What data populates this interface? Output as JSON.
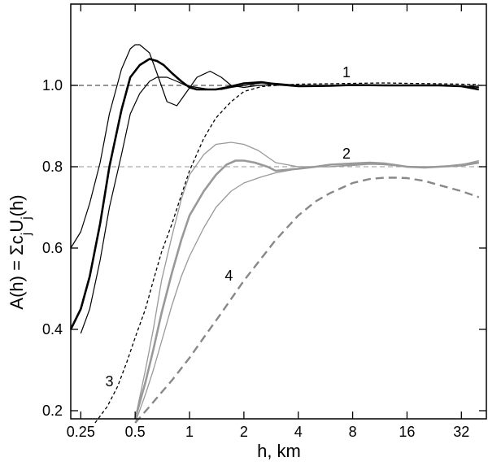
{
  "chart_data": {
    "type": "line",
    "xlabel": "h, km",
    "ylabel_parts": {
      "a": "A(h) = ",
      "sigma": "Σ",
      "c": "c",
      "j1": "j",
      "u": "U",
      "j2": "j",
      "tail": "(h)"
    },
    "x_scale": "log2",
    "xlim": [
      0.22,
      44
    ],
    "ylim": [
      0.18,
      1.2
    ],
    "x_ticks": [
      {
        "value": 0.25,
        "label": "0.25"
      },
      {
        "value": 0.5,
        "label": "0.5"
      },
      {
        "value": 1,
        "label": "1"
      },
      {
        "value": 2,
        "label": "2"
      },
      {
        "value": 4,
        "label": "4"
      },
      {
        "value": 8,
        "label": "8"
      },
      {
        "value": 16,
        "label": "16"
      },
      {
        "value": 32,
        "label": "32"
      }
    ],
    "y_ticks": [
      {
        "value": 0.2,
        "label": "0.2"
      },
      {
        "value": 0.4,
        "label": "0.4"
      },
      {
        "value": 0.6,
        "label": "0.6"
      },
      {
        "value": 0.8,
        "label": "0.8"
      },
      {
        "value": 1.0,
        "label": "1.0"
      }
    ],
    "reference_lines": [
      {
        "y": 1.0,
        "color": "#555555"
      },
      {
        "y": 0.8,
        "color": "#aaaaaa"
      }
    ],
    "annotations": [
      {
        "text": "1",
        "x": 7.4,
        "y": 1.02
      },
      {
        "text": "2",
        "x": 7.4,
        "y": 0.82
      },
      {
        "text": "3",
        "x": 0.36,
        "y": 0.26
      },
      {
        "text": "4",
        "x": 1.65,
        "y": 0.52
      }
    ],
    "series": [
      {
        "id": "s1a",
        "group": "1",
        "color": "#000000",
        "width": 1.2,
        "dash": "",
        "x": [
          0.22,
          0.25,
          0.28,
          0.32,
          0.36,
          0.42,
          0.47,
          0.5,
          0.53,
          0.6,
          0.66,
          0.75,
          0.85,
          0.95,
          1.1,
          1.3,
          1.5,
          1.7,
          2.0,
          2.4,
          3.0,
          4.0,
          6.0,
          8.0,
          12,
          16,
          24,
          32,
          40
        ],
        "y": [
          0.6,
          0.64,
          0.71,
          0.81,
          0.93,
          1.04,
          1.09,
          1.1,
          1.1,
          1.08,
          1.03,
          0.96,
          0.95,
          0.98,
          1.02,
          1.035,
          1.02,
          1.0,
          0.995,
          1.0,
          1.003,
          1.0,
          0.999,
          1.0,
          1.0,
          1.0,
          1.0,
          0.998,
          0.995
        ]
      },
      {
        "id": "s1b",
        "group": "1",
        "color": "#000000",
        "width": 2.6,
        "dash": "",
        "x": [
          0.22,
          0.25,
          0.28,
          0.32,
          0.36,
          0.42,
          0.47,
          0.53,
          0.6,
          0.66,
          0.72,
          0.8,
          0.9,
          1.0,
          1.1,
          1.25,
          1.4,
          1.6,
          2.0,
          2.5,
          3.0,
          4.0,
          6.0,
          8.0,
          12,
          16,
          24,
          32,
          40
        ],
        "y": [
          0.4,
          0.45,
          0.53,
          0.66,
          0.8,
          0.94,
          1.02,
          1.05,
          1.065,
          1.06,
          1.05,
          1.03,
          1.01,
          0.995,
          0.99,
          0.99,
          0.99,
          0.995,
          1.005,
          1.008,
          1.003,
          0.998,
          0.999,
          1.001,
          1.0,
          1.0,
          1.0,
          0.998,
          0.99
        ]
      },
      {
        "id": "s1c",
        "group": "1",
        "color": "#000000",
        "width": 1.2,
        "dash": "",
        "x": [
          0.25,
          0.28,
          0.32,
          0.36,
          0.42,
          0.47,
          0.53,
          0.6,
          0.66,
          0.75,
          0.85,
          0.95,
          1.1,
          1.3,
          1.5,
          1.7,
          2.0,
          2.5,
          3.0,
          4.0,
          6.0,
          8.0,
          12,
          16,
          24,
          32,
          40
        ],
        "y": [
          0.39,
          0.45,
          0.57,
          0.7,
          0.83,
          0.93,
          0.98,
          1.01,
          1.02,
          1.02,
          1.01,
          1.0,
          0.995,
          0.99,
          0.99,
          0.995,
          1.0,
          1.006,
          1.005,
          1.0,
          1.0,
          1.0,
          1.0,
          1.0,
          1.0,
          0.998,
          0.998
        ]
      },
      {
        "id": "s3",
        "group": "3",
        "color": "#000000",
        "width": 1.3,
        "dash": "4,3",
        "x": [
          0.3,
          0.35,
          0.4,
          0.45,
          0.5,
          0.57,
          0.63,
          0.7,
          0.8,
          0.9,
          1.0,
          1.2,
          1.4,
          1.7,
          2.0,
          2.5,
          3.0,
          4.0,
          6.0,
          8.0,
          12,
          16,
          24,
          32,
          40
        ],
        "y": [
          0.17,
          0.21,
          0.26,
          0.32,
          0.38,
          0.45,
          0.52,
          0.59,
          0.66,
          0.73,
          0.79,
          0.87,
          0.92,
          0.96,
          0.985,
          0.997,
          1.0,
          1.003,
          1.004,
          1.005,
          1.006,
          1.005,
          1.004,
          1.003,
          1.002
        ]
      },
      {
        "id": "s2a",
        "group": "2",
        "color": "#999999",
        "width": 1.3,
        "dash": "",
        "x": [
          0.5,
          0.57,
          0.63,
          0.7,
          0.8,
          0.9,
          1.0,
          1.2,
          1.4,
          1.7,
          2.0,
          2.4,
          3.0,
          4.0,
          5.0,
          6.0,
          8.0,
          10,
          12,
          16,
          24,
          32,
          40
        ],
        "y": [
          0.18,
          0.3,
          0.4,
          0.52,
          0.63,
          0.72,
          0.78,
          0.83,
          0.855,
          0.86,
          0.855,
          0.84,
          0.81,
          0.8,
          0.8,
          0.8,
          0.805,
          0.808,
          0.805,
          0.8,
          0.8,
          0.805,
          0.815
        ]
      },
      {
        "id": "s2b",
        "group": "2",
        "color": "#999999",
        "width": 2.6,
        "dash": "",
        "x": [
          0.5,
          0.57,
          0.63,
          0.7,
          0.8,
          0.9,
          1.0,
          1.2,
          1.4,
          1.6,
          1.8,
          2.0,
          2.3,
          2.7,
          3.0,
          4.0,
          5.0,
          6.0,
          8.0,
          10,
          12,
          16,
          20,
          24,
          32,
          40
        ],
        "y": [
          0.18,
          0.27,
          0.35,
          0.44,
          0.54,
          0.62,
          0.68,
          0.74,
          0.78,
          0.805,
          0.815,
          0.815,
          0.81,
          0.8,
          0.79,
          0.795,
          0.8,
          0.805,
          0.808,
          0.81,
          0.808,
          0.8,
          0.798,
          0.8,
          0.803,
          0.81
        ]
      },
      {
        "id": "s2c",
        "group": "2",
        "color": "#999999",
        "width": 1.3,
        "dash": "",
        "x": [
          0.5,
          0.57,
          0.63,
          0.7,
          0.8,
          0.9,
          1.0,
          1.2,
          1.4,
          1.7,
          2.0,
          2.5,
          3.0,
          4.0,
          5.0,
          6.0,
          8.0,
          10,
          12,
          16,
          24,
          32,
          40
        ],
        "y": [
          0.17,
          0.24,
          0.3,
          0.37,
          0.46,
          0.53,
          0.58,
          0.65,
          0.7,
          0.74,
          0.76,
          0.775,
          0.785,
          0.795,
          0.8,
          0.8,
          0.803,
          0.806,
          0.805,
          0.8,
          0.8,
          0.806,
          0.812
        ]
      },
      {
        "id": "s4",
        "group": "4",
        "color": "#888888",
        "width": 2.4,
        "dash": "10,6",
        "x": [
          0.5,
          0.6,
          0.7,
          0.8,
          1.0,
          1.2,
          1.5,
          2.0,
          2.5,
          3.0,
          4.0,
          5.0,
          6.0,
          8.0,
          10,
          12,
          14,
          16,
          20,
          24,
          32,
          40
        ],
        "y": [
          0.17,
          0.21,
          0.245,
          0.275,
          0.33,
          0.38,
          0.44,
          0.52,
          0.575,
          0.62,
          0.68,
          0.715,
          0.735,
          0.76,
          0.77,
          0.773,
          0.773,
          0.772,
          0.765,
          0.755,
          0.74,
          0.725
        ]
      }
    ]
  }
}
